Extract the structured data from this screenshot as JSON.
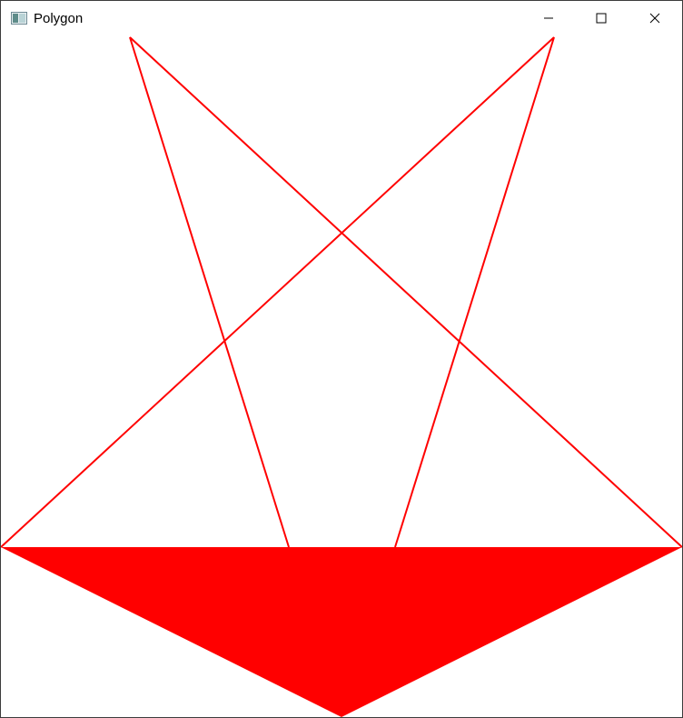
{
  "window": {
    "title": "Polygon",
    "app_icon": "window-app-icon",
    "controls": [
      {
        "name": "minimize-button",
        "icon": "minimize-icon"
      },
      {
        "name": "maximize-button",
        "icon": "maximize-icon"
      },
      {
        "name": "close-button",
        "icon": "close-icon"
      }
    ]
  },
  "drawing": {
    "stroke_color": "#ff0000",
    "fill_color": "#ff0000",
    "background_color": "#ffffff"
  }
}
